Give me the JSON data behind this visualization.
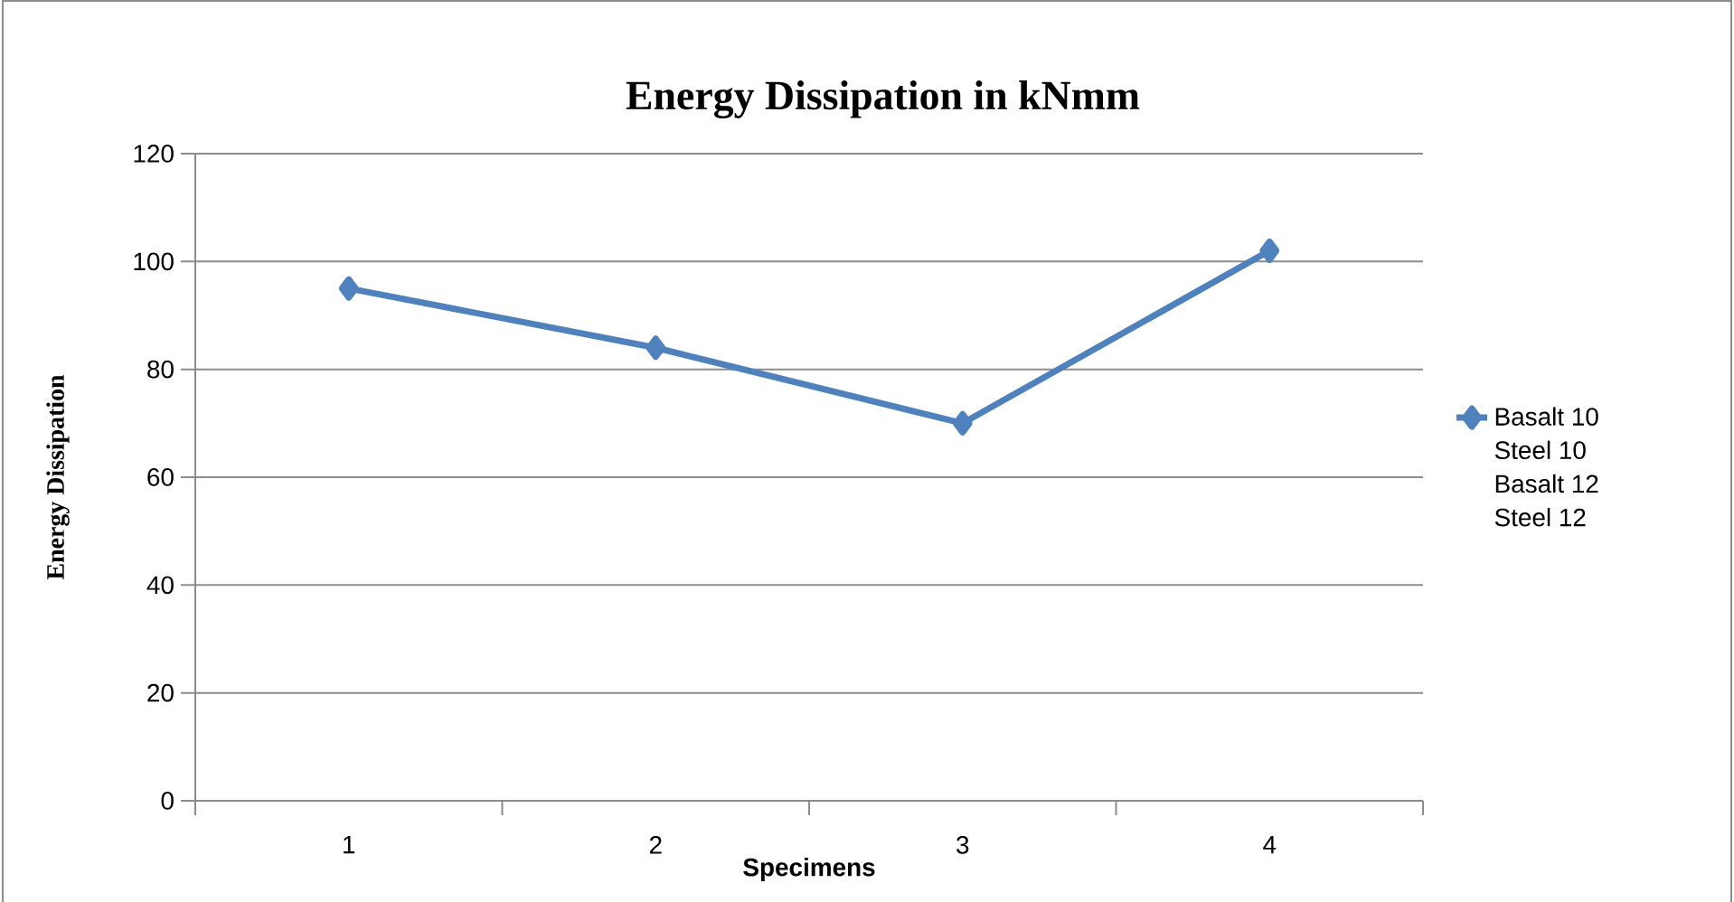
{
  "chart_data": {
    "type": "line",
    "title": "Energy Dissipation in kNmm",
    "xlabel": "Specimens",
    "ylabel": "Energy Dissipation",
    "categories": [
      "1",
      "2",
      "3",
      "4"
    ],
    "series": [
      {
        "name": "Basalt 10",
        "color": "#4f81bd",
        "values": [
          95,
          84,
          70,
          102
        ]
      },
      {
        "name": "Steel 10",
        "values": [
          null,
          null,
          null,
          null
        ]
      },
      {
        "name": "Basalt 12",
        "values": [
          null,
          null,
          null,
          null
        ]
      },
      {
        "name": "Steel 12",
        "values": [
          null,
          null,
          null,
          null
        ]
      }
    ],
    "ylim": [
      0,
      120
    ],
    "yticks": [
      0,
      20,
      40,
      60,
      80,
      100,
      120
    ],
    "grid": "y",
    "legend": "right",
    "marker": "diamond",
    "line_style": "solid"
  }
}
